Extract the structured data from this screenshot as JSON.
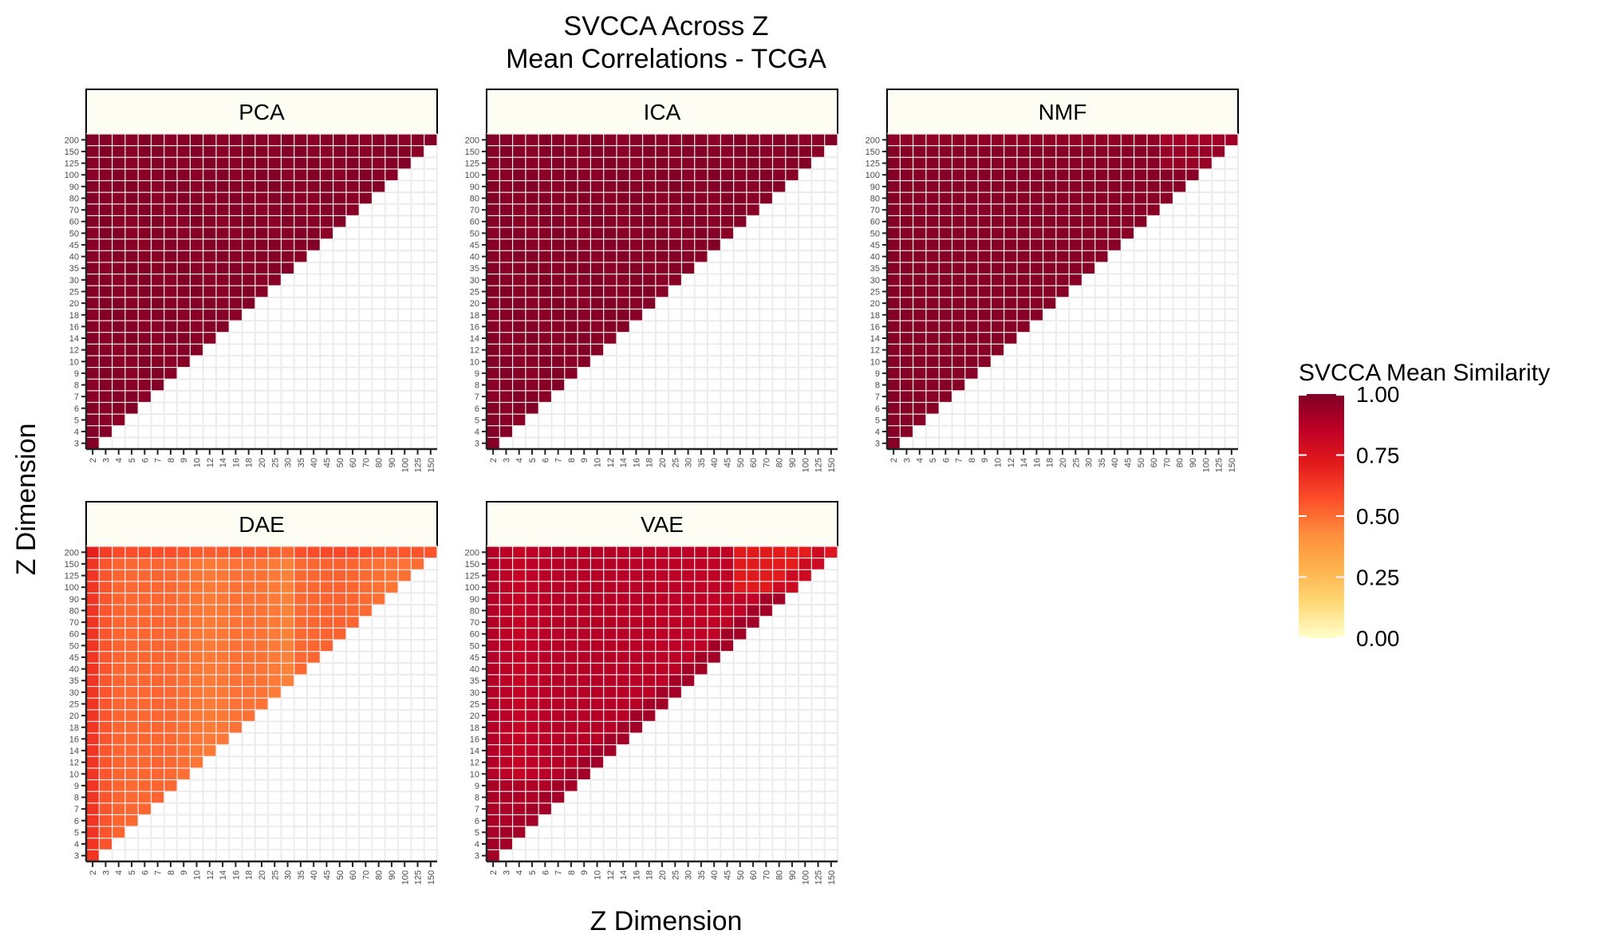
{
  "chart_data": {
    "type": "heatmap",
    "title": "SVCCA Across Z",
    "subtitle": "Mean Correlations - TCGA",
    "xlabel": "Z Dimension",
    "ylabel": "Z Dimension",
    "x_categories": [
      "2",
      "3",
      "4",
      "5",
      "6",
      "7",
      "8",
      "9",
      "10",
      "12",
      "14",
      "16",
      "18",
      "20",
      "25",
      "30",
      "35",
      "40",
      "45",
      "50",
      "60",
      "70",
      "80",
      "90",
      "100",
      "125",
      "150"
    ],
    "y_categories": [
      "3",
      "4",
      "5",
      "6",
      "7",
      "8",
      "9",
      "10",
      "12",
      "14",
      "16",
      "18",
      "20",
      "25",
      "30",
      "35",
      "40",
      "45",
      "50",
      "60",
      "70",
      "80",
      "90",
      "100",
      "125",
      "150",
      "200"
    ],
    "value_range": [
      0,
      1
    ],
    "legend": {
      "title": "SVCCA Mean Similarity",
      "position": "right",
      "ticks": [
        "1.00",
        "0.75",
        "0.50",
        "0.25",
        "0.00"
      ],
      "tick_values": [
        1.0,
        0.75,
        0.5,
        0.25,
        0.0
      ],
      "colors": [
        "#ffffcc",
        "#fed976",
        "#feb24c",
        "#fd8d3c",
        "#fc4e2a",
        "#e31a1c",
        "#bd0026",
        "#800026"
      ]
    },
    "note_values": "Lower-triangular matrix: cell (x, y) shown where x < y. Approximate mean SVCCA similarity per algorithm.",
    "panels": [
      {
        "name": "PCA",
        "mean_similarity": 0.99
      },
      {
        "name": "ICA",
        "mean_similarity": 0.99
      },
      {
        "name": "NMF",
        "mean_similarity": 0.93
      },
      {
        "name": "DAE",
        "mean_similarity": 0.5
      },
      {
        "name": "VAE",
        "mean_similarity": 0.82
      }
    ]
  }
}
